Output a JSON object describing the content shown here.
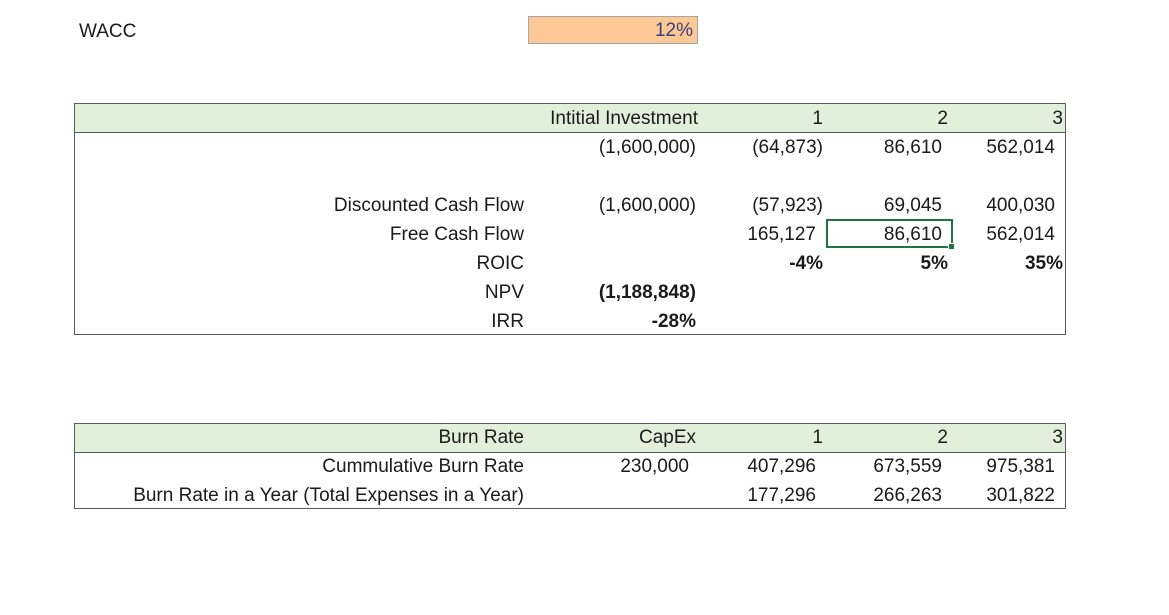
{
  "wacc": {
    "label": "WACC",
    "value": "12%"
  },
  "valuation": {
    "headers": [
      "Intitial Investment",
      "1",
      "2",
      "3"
    ],
    "cash_flows": [
      "(1,600,000)",
      "(64,873)",
      "86,610",
      "562,014"
    ],
    "discounted_cash_flow": {
      "label": "Discounted Cash Flow",
      "values": [
        "(1,600,000)",
        "(57,923)",
        "69,045",
        "400,030"
      ]
    },
    "free_cash_flow": {
      "label": "Free Cash Flow",
      "values": [
        "",
        "165,127",
        "86,610",
        "562,014"
      ]
    },
    "roic": {
      "label": "ROIC",
      "values": [
        "",
        "-4%",
        "5%",
        "35%"
      ]
    },
    "npv": {
      "label": "NPV",
      "value": "(1,188,848)"
    },
    "irr": {
      "label": "IRR",
      "value": "-28%"
    }
  },
  "burn": {
    "headers": [
      "Burn Rate",
      "CapEx",
      "1",
      "2",
      "3"
    ],
    "cumulative": {
      "label": "Cummulative Burn Rate",
      "values": [
        "230,000",
        "407,296",
        "673,559",
        "975,381"
      ]
    },
    "yearly": {
      "label": "Burn Rate in a Year (Total Expenses in a Year)",
      "values": [
        "",
        "177,296",
        "266,263",
        "301,822"
      ]
    }
  },
  "colors": {
    "input_fill": "#fcc896",
    "header_fill": "#e2efda",
    "selection": "#217346",
    "input_text": "#3f3f76"
  }
}
